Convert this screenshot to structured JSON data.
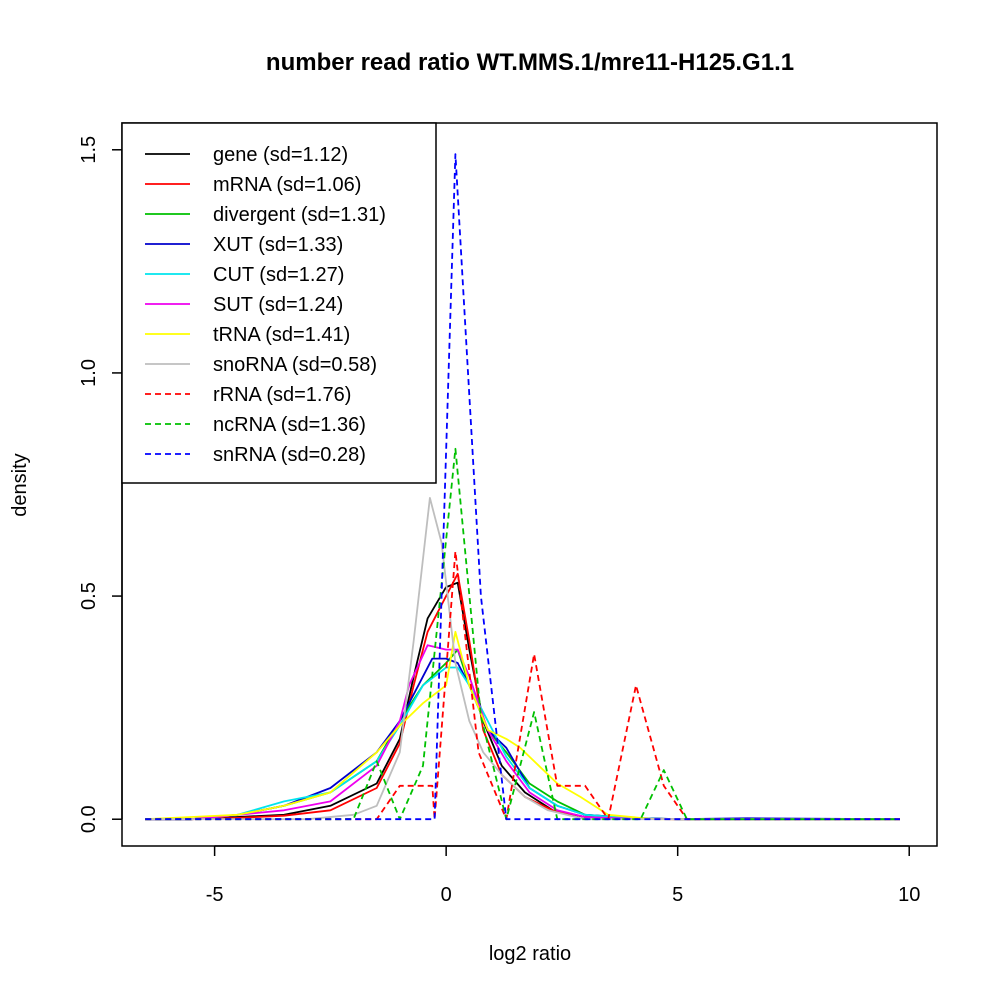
{
  "chart_data": {
    "type": "line",
    "title": "number read ratio WT.MMS.1/mre11-H125.G1.1",
    "xlabel": "log2 ratio",
    "ylabel": "density",
    "xlim": [
      -7.0,
      10.6
    ],
    "ylim": [
      -0.06,
      1.56
    ],
    "x_ticks": [
      -5,
      0,
      5,
      10
    ],
    "y_ticks": [
      0.0,
      0.5,
      1.0,
      1.5
    ],
    "x_tick_labels": [
      "-5",
      "0",
      "5",
      "10"
    ],
    "y_tick_labels": [
      "0.0",
      "0.5",
      "1.0",
      "1.5"
    ],
    "grid": false,
    "legend_position": "top-left",
    "series": [
      {
        "name": "gene (sd=1.12)",
        "color": "#000000",
        "dash": "solid",
        "x": [
          -6.5,
          -5.5,
          -4.5,
          -3.5,
          -2.5,
          -1.5,
          -1.0,
          -0.7,
          -0.4,
          0.0,
          0.25,
          0.5,
          0.8,
          1.2,
          1.7,
          2.3,
          3.0,
          4.0,
          5.0,
          6.5,
          8.0,
          9.8
        ],
        "y": [
          0.0,
          0.0,
          0.005,
          0.01,
          0.03,
          0.08,
          0.18,
          0.32,
          0.45,
          0.52,
          0.53,
          0.38,
          0.22,
          0.12,
          0.06,
          0.02,
          0.005,
          0.002,
          0.0,
          0.0,
          0.0,
          0.0
        ]
      },
      {
        "name": "mRNA (sd=1.06)",
        "color": "#ff0000",
        "dash": "solid",
        "x": [
          -6.5,
          -5.5,
          -4.5,
          -3.5,
          -2.5,
          -1.5,
          -1.0,
          -0.7,
          -0.4,
          0.0,
          0.25,
          0.5,
          0.8,
          1.2,
          1.7,
          2.3,
          3.0,
          4.0,
          5.0,
          6.5,
          8.0,
          9.8
        ],
        "y": [
          0.0,
          0.0,
          0.003,
          0.008,
          0.02,
          0.07,
          0.17,
          0.3,
          0.42,
          0.5,
          0.55,
          0.4,
          0.2,
          0.1,
          0.05,
          0.02,
          0.005,
          0.001,
          0.0,
          0.0,
          0.0,
          0.0
        ]
      },
      {
        "name": "divergent (sd=1.31)",
        "color": "#00c000",
        "dash": "solid",
        "x": [
          -6.5,
          -5.5,
          -4.5,
          -3.5,
          -2.5,
          -1.5,
          -1.0,
          -0.5,
          0.0,
          0.25,
          0.5,
          0.9,
          1.3,
          1.8,
          2.4,
          3.0,
          4.0,
          5.0,
          6.5,
          9.8
        ],
        "y": [
          0.0,
          0.0,
          0.01,
          0.03,
          0.06,
          0.13,
          0.22,
          0.3,
          0.35,
          0.38,
          0.3,
          0.2,
          0.15,
          0.08,
          0.04,
          0.01,
          0.003,
          0.0,
          0.0,
          0.0
        ]
      },
      {
        "name": "XUT (sd=1.33)",
        "color": "#0000cc",
        "dash": "solid",
        "x": [
          -6.5,
          -5.5,
          -4.5,
          -3.5,
          -2.5,
          -1.5,
          -1.0,
          -0.5,
          -0.3,
          0.0,
          0.25,
          0.5,
          0.9,
          1.3,
          1.8,
          2.4,
          3.0,
          4.0,
          5.0,
          6.5,
          9.8
        ],
        "y": [
          0.0,
          0.0,
          0.01,
          0.03,
          0.07,
          0.15,
          0.22,
          0.32,
          0.36,
          0.36,
          0.35,
          0.3,
          0.2,
          0.16,
          0.07,
          0.03,
          0.01,
          0.003,
          0.0,
          0.002,
          0.0
        ]
      },
      {
        "name": "CUT (sd=1.27)",
        "color": "#00e5ee",
        "dash": "solid",
        "x": [
          -6.5,
          -5.5,
          -4.5,
          -3.5,
          -2.5,
          -1.5,
          -1.0,
          -0.5,
          0.0,
          0.25,
          0.5,
          0.9,
          1.3,
          1.8,
          2.4,
          3.0,
          4.0,
          5.0,
          6.5,
          9.8
        ],
        "y": [
          0.0,
          0.0,
          0.01,
          0.04,
          0.06,
          0.13,
          0.21,
          0.3,
          0.34,
          0.34,
          0.3,
          0.22,
          0.14,
          0.07,
          0.03,
          0.01,
          0.002,
          0.0,
          0.0,
          0.0
        ]
      },
      {
        "name": "SUT (sd=1.24)",
        "color": "#ee00ee",
        "dash": "solid",
        "x": [
          -6.5,
          -5.5,
          -4.5,
          -3.5,
          -2.5,
          -1.5,
          -1.0,
          -0.8,
          -0.4,
          0.0,
          0.25,
          0.5,
          0.9,
          1.3,
          1.8,
          2.4,
          3.0,
          4.0,
          5.0,
          6.5,
          9.8
        ],
        "y": [
          0.0,
          0.0,
          0.01,
          0.02,
          0.04,
          0.12,
          0.22,
          0.3,
          0.39,
          0.38,
          0.38,
          0.32,
          0.2,
          0.13,
          0.06,
          0.02,
          0.005,
          0.001,
          0.0,
          0.0,
          0.0
        ]
      },
      {
        "name": "tRNA (sd=1.41)",
        "color": "#ffff00",
        "dash": "solid",
        "x": [
          -6.5,
          -5.5,
          -4.5,
          -3.5,
          -2.5,
          -1.5,
          -1.0,
          -0.5,
          0.0,
          0.2,
          0.5,
          0.9,
          1.3,
          1.6,
          2.0,
          2.4,
          2.9,
          3.5,
          4.5,
          6.0,
          9.8
        ],
        "y": [
          0.0,
          0.005,
          0.01,
          0.03,
          0.06,
          0.15,
          0.21,
          0.26,
          0.3,
          0.42,
          0.3,
          0.2,
          0.18,
          0.16,
          0.12,
          0.08,
          0.05,
          0.01,
          0.0,
          0.0,
          0.0
        ]
      },
      {
        "name": "snoRNA (sd=0.58)",
        "color": "#bebebe",
        "dash": "solid",
        "x": [
          -6.5,
          -3.0,
          -2.0,
          -1.5,
          -1.0,
          -0.7,
          -0.35,
          -0.1,
          0.2,
          0.5,
          0.8,
          1.2,
          1.7,
          2.2,
          3.0,
          9.8
        ],
        "y": [
          0.0,
          0.0,
          0.01,
          0.03,
          0.15,
          0.4,
          0.72,
          0.62,
          0.35,
          0.22,
          0.15,
          0.1,
          0.05,
          0.02,
          0.0,
          0.0
        ]
      },
      {
        "name": "rRNA (sd=1.76)",
        "color": "#ff0000",
        "dash": "dashed",
        "x": [
          -6.5,
          -2.0,
          -1.5,
          -1.0,
          -0.3,
          -0.25,
          0.2,
          0.7,
          1.3,
          1.9,
          2.4,
          3.0,
          3.5,
          4.1,
          4.7,
          5.2,
          9.8
        ],
        "y": [
          0.0,
          0.0,
          0.0,
          0.075,
          0.075,
          0.0,
          0.6,
          0.15,
          0.0,
          0.37,
          0.075,
          0.075,
          0.0,
          0.3,
          0.075,
          0.0,
          0.0
        ]
      },
      {
        "name": "ncRNA (sd=1.36)",
        "color": "#00c000",
        "dash": "dashed",
        "x": [
          -6.5,
          -2.0,
          -1.5,
          -1.0,
          -0.5,
          0.2,
          0.75,
          1.3,
          1.9,
          2.4,
          4.2,
          4.7,
          5.2,
          9.8
        ],
        "y": [
          0.0,
          0.0,
          0.13,
          0.0,
          0.12,
          0.83,
          0.23,
          0.0,
          0.24,
          0.0,
          0.0,
          0.11,
          0.0,
          0.0
        ]
      },
      {
        "name": "snRNA (sd=0.28)",
        "color": "#0000ff",
        "dash": "dashed",
        "x": [
          -6.5,
          -0.3,
          -0.25,
          0.2,
          0.75,
          1.3,
          9.8
        ],
        "y": [
          0.0,
          0.0,
          0.0,
          1.49,
          0.5,
          0.0,
          0.0
        ]
      }
    ]
  }
}
